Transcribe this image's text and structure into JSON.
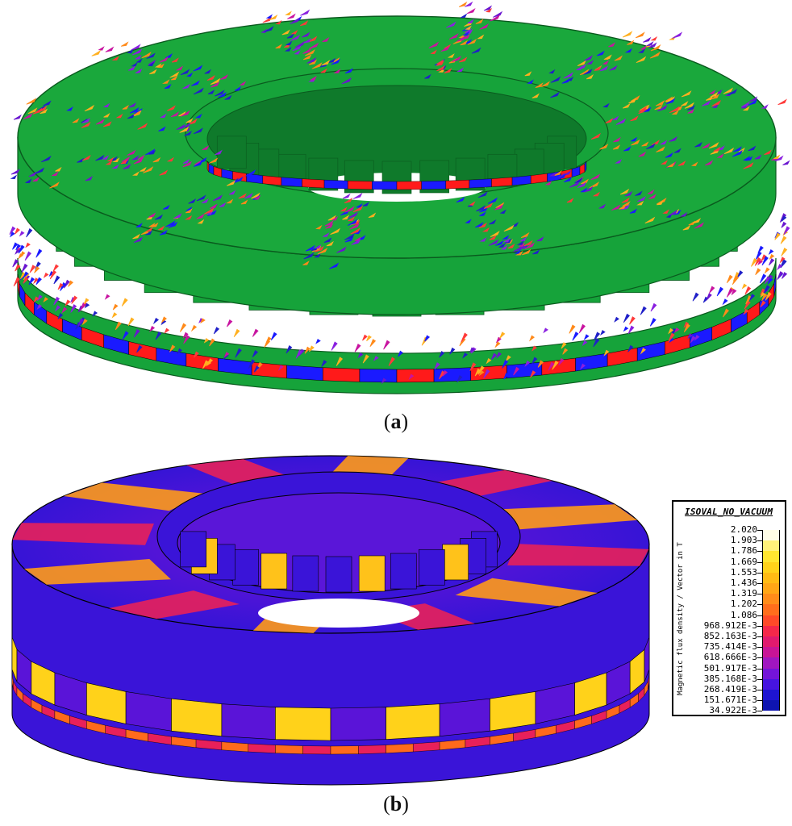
{
  "captions": {
    "a": "a",
    "b": "b"
  },
  "legend": {
    "title": "ISOVAL_NO_VACUUM",
    "axis_label": "Magnetic flux density / Vector in T",
    "entries": [
      {
        "value": "2.020",
        "color": "#fffde6"
      },
      {
        "value": "1.903",
        "color": "#fff27a"
      },
      {
        "value": "1.786",
        "color": "#ffe630"
      },
      {
        "value": "1.669",
        "color": "#ffd21a"
      },
      {
        "value": "1.553",
        "color": "#ffbb14"
      },
      {
        "value": "1.436",
        "color": "#ffa616"
      },
      {
        "value": "1.319",
        "color": "#ff8c1a"
      },
      {
        "value": "1.202",
        "color": "#ff6e1c"
      },
      {
        "value": "1.086",
        "color": "#ff4a28"
      },
      {
        "value": "968.912E-3",
        "color": "#f5284a"
      },
      {
        "value": "852.163E-3",
        "color": "#e01a6e"
      },
      {
        "value": "735.414E-3",
        "color": "#c81496"
      },
      {
        "value": "618.666E-3",
        "color": "#a016c0"
      },
      {
        "value": "501.917E-3",
        "color": "#7414d8"
      },
      {
        "value": "385.168E-3",
        "color": "#4614e0"
      },
      {
        "value": "268.419E-3",
        "color": "#1e14d2"
      },
      {
        "value": "151.671E-3",
        "color": "#0e14b0"
      },
      {
        "value": "34.922E-3",
        "color": "#06107e"
      }
    ]
  },
  "colors": {
    "steel_green": "#16a33a",
    "steel_green_dark": "#0f7a2b",
    "magnet_red": "#ff1a1a",
    "magnet_blue": "#1a1aff"
  }
}
